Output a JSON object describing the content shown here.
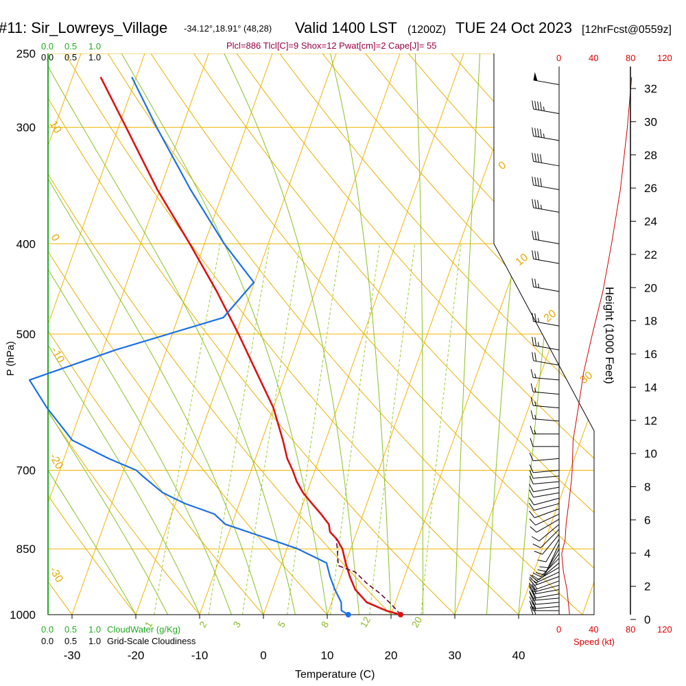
{
  "header": {
    "station": "#11: Sir_Lowreys_Village",
    "coords": "-34.12°,18.91° (48,28)",
    "valid": "Valid 1400 LST",
    "zulu": "(1200Z)",
    "date": "TUE 24 Oct 2023",
    "forecast": "[12hrFcst@0559z]",
    "indices": "Plcl=886 Tlcl[C]=9 Shox=12 Pwat[cm]=2 Cape[J]= 55"
  },
  "cloudwater_scale": {
    "top_green": [
      "0.0",
      "0.5",
      "1.0"
    ],
    "top_black": [
      "0.0",
      "0.5",
      "1.0"
    ],
    "bottom_green": [
      "0.0",
      "0.5",
      "1.0"
    ],
    "bottom_green_label": "CloudWater (g/Kg)",
    "bottom_black": [
      "0.0",
      "0.5",
      "1.0"
    ],
    "bottom_black_label": "Grid-Scale Cloudiness"
  },
  "wind_speed_scale": {
    "top": [
      "0",
      "40",
      "80",
      "120"
    ],
    "bottom": [
      "0",
      "40",
      "80",
      "120"
    ],
    "label": "Speed (kt)"
  },
  "colors": {
    "temperature": "#dd1111",
    "dewpoint": "#1a6ee6",
    "parcel": "#660033",
    "isotherm": "#f0b400",
    "dry_adiabat": "#e8b000",
    "moist_adiabat": "#88c022",
    "mixing_ratio": "#99cc33",
    "windspeed": "#cc0000"
  },
  "chart_data": {
    "type": "line",
    "title": "",
    "xlabel": "Temperature (C)",
    "ylabel": "P (hPa)",
    "y2label": "Height (1000 Feet)",
    "x_ticks": [
      -30,
      -20,
      -10,
      0,
      10,
      20,
      30,
      40
    ],
    "pressure_ticks": [
      250,
      300,
      400,
      500,
      700,
      850,
      1000
    ],
    "height_ticks": [
      0,
      2,
      4,
      6,
      8,
      10,
      12,
      14,
      16,
      18,
      20,
      22,
      24,
      26,
      28,
      30,
      32
    ],
    "isotherm_labels": [
      "0",
      "10",
      "20",
      "30"
    ],
    "left_labels": [
      "10",
      "0",
      "-10",
      "-20",
      "-30"
    ],
    "mixing_ratio_labels": [
      "1",
      "2",
      "3",
      "5",
      "8",
      "12",
      "20"
    ],
    "surface": {
      "temperature": 21.5,
      "dewpoint": 13.3,
      "pressure": 1000
    },
    "series": [
      {
        "name": "Temperature",
        "points": [
          [
            1000,
            21.5
          ],
          [
            990,
            19.0
          ],
          [
            970,
            15.5
          ],
          [
            940,
            13.0
          ],
          [
            910,
            11.4
          ],
          [
            880,
            10.0
          ],
          [
            850,
            8.7
          ],
          [
            830,
            7.3
          ],
          [
            815,
            5.8
          ],
          [
            800,
            5.2
          ],
          [
            780,
            3.4
          ],
          [
            760,
            1.4
          ],
          [
            740,
            -0.6
          ],
          [
            720,
            -2.2
          ],
          [
            700,
            -3.5
          ],
          [
            680,
            -5.0
          ],
          [
            650,
            -6.7
          ],
          [
            600,
            -10.0
          ],
          [
            550,
            -14.6
          ],
          [
            500,
            -19.6
          ],
          [
            450,
            -25.4
          ],
          [
            400,
            -32.3
          ],
          [
            350,
            -40.4
          ],
          [
            300,
            -48.8
          ],
          [
            265,
            -55.6
          ]
        ]
      },
      {
        "name": "Dewpoint",
        "points": [
          [
            1000,
            13.3
          ],
          [
            990,
            12.0
          ],
          [
            970,
            11.5
          ],
          [
            940,
            9.8
          ],
          [
            910,
            8.3
          ],
          [
            880,
            7.0
          ],
          [
            850,
            1.7
          ],
          [
            830,
            -3.2
          ],
          [
            800,
            -11.0
          ],
          [
            780,
            -13.3
          ],
          [
            760,
            -18.5
          ],
          [
            740,
            -22.6
          ],
          [
            710,
            -26.7
          ],
          [
            700,
            -28.0
          ],
          [
            680,
            -33.0
          ],
          [
            650,
            -39.7
          ],
          [
            600,
            -45.5
          ],
          [
            560,
            -49.8
          ],
          [
            520,
            -38.0
          ],
          [
            480,
            -22.9
          ],
          [
            440,
            -20.1
          ],
          [
            400,
            -26.9
          ],
          [
            350,
            -35.2
          ],
          [
            300,
            -44.0
          ],
          [
            265,
            -50.7
          ]
        ]
      },
      {
        "name": "Parcel",
        "points": [
          [
            1000,
            21.5
          ],
          [
            975,
            19.5
          ],
          [
            950,
            17.2
          ],
          [
            925,
            14.4
          ],
          [
            900,
            12.0
          ],
          [
            886,
            9.0
          ],
          [
            870,
            8.5
          ],
          [
            850,
            7.9
          ],
          [
            830,
            7.2
          ]
        ]
      }
    ],
    "wind_barbs": [
      {
        "p": 1000,
        "dir": 270,
        "speed": 20
      },
      {
        "p": 990,
        "dir": 270,
        "speed": 20
      },
      {
        "p": 980,
        "dir": 265,
        "speed": 20
      },
      {
        "p": 970,
        "dir": 265,
        "speed": 20
      },
      {
        "p": 960,
        "dir": 265,
        "speed": 20
      },
      {
        "p": 950,
        "dir": 260,
        "speed": 20
      },
      {
        "p": 940,
        "dir": 260,
        "speed": 20
      },
      {
        "p": 930,
        "dir": 255,
        "speed": 20
      },
      {
        "p": 920,
        "dir": 250,
        "speed": 20
      },
      {
        "p": 910,
        "dir": 250,
        "speed": 15
      },
      {
        "p": 900,
        "dir": 245,
        "speed": 15
      },
      {
        "p": 890,
        "dir": 240,
        "speed": 10
      },
      {
        "p": 880,
        "dir": 230,
        "speed": 10
      },
      {
        "p": 870,
        "dir": 225,
        "speed": 10
      },
      {
        "p": 860,
        "dir": 215,
        "speed": 10
      },
      {
        "p": 850,
        "dir": 210,
        "speed": 10
      },
      {
        "p": 840,
        "dir": 205,
        "speed": 10
      },
      {
        "p": 830,
        "dir": 210,
        "speed": 10
      },
      {
        "p": 820,
        "dir": 220,
        "speed": 10
      },
      {
        "p": 810,
        "dir": 225,
        "speed": 10
      },
      {
        "p": 800,
        "dir": 230,
        "speed": 10
      },
      {
        "p": 790,
        "dir": 240,
        "speed": 10
      },
      {
        "p": 780,
        "dir": 245,
        "speed": 10
      },
      {
        "p": 770,
        "dir": 250,
        "speed": 10
      },
      {
        "p": 760,
        "dir": 255,
        "speed": 10
      },
      {
        "p": 750,
        "dir": 255,
        "speed": 10
      },
      {
        "p": 740,
        "dir": 260,
        "speed": 10
      },
      {
        "p": 730,
        "dir": 260,
        "speed": 10
      },
      {
        "p": 720,
        "dir": 265,
        "speed": 10
      },
      {
        "p": 710,
        "dir": 265,
        "speed": 10
      },
      {
        "p": 700,
        "dir": 265,
        "speed": 10
      },
      {
        "p": 680,
        "dir": 265,
        "speed": 10
      },
      {
        "p": 660,
        "dir": 270,
        "speed": 10
      },
      {
        "p": 640,
        "dir": 270,
        "speed": 15
      },
      {
        "p": 620,
        "dir": 275,
        "speed": 15
      },
      {
        "p": 600,
        "dir": 275,
        "speed": 15
      },
      {
        "p": 580,
        "dir": 275,
        "speed": 15
      },
      {
        "p": 560,
        "dir": 275,
        "speed": 15
      },
      {
        "p": 540,
        "dir": 280,
        "speed": 20
      },
      {
        "p": 520,
        "dir": 280,
        "speed": 25
      },
      {
        "p": 490,
        "dir": 280,
        "speed": 25
      },
      {
        "p": 450,
        "dir": 280,
        "speed": 25
      },
      {
        "p": 420,
        "dir": 280,
        "speed": 30
      },
      {
        "p": 400,
        "dir": 280,
        "speed": 30
      },
      {
        "p": 370,
        "dir": 280,
        "speed": 35
      },
      {
        "p": 350,
        "dir": 280,
        "speed": 40
      },
      {
        "p": 330,
        "dir": 280,
        "speed": 40
      },
      {
        "p": 310,
        "dir": 280,
        "speed": 45
      },
      {
        "p": 290,
        "dir": 280,
        "speed": 45
      },
      {
        "p": 270,
        "dir": 280,
        "speed": 50
      }
    ],
    "wind_speed_profile": [
      [
        1000,
        12
      ],
      [
        980,
        11
      ],
      [
        960,
        10
      ],
      [
        940,
        9
      ],
      [
        900,
        5
      ],
      [
        860,
        3
      ],
      [
        830,
        7
      ],
      [
        800,
        8
      ],
      [
        760,
        11
      ],
      [
        720,
        14
      ],
      [
        700,
        15
      ],
      [
        650,
        16
      ],
      [
        600,
        22
      ],
      [
        550,
        28
      ],
      [
        500,
        38
      ],
      [
        450,
        50
      ],
      [
        400,
        60
      ],
      [
        350,
        70
      ],
      [
        300,
        78
      ],
      [
        265,
        83
      ]
    ]
  }
}
